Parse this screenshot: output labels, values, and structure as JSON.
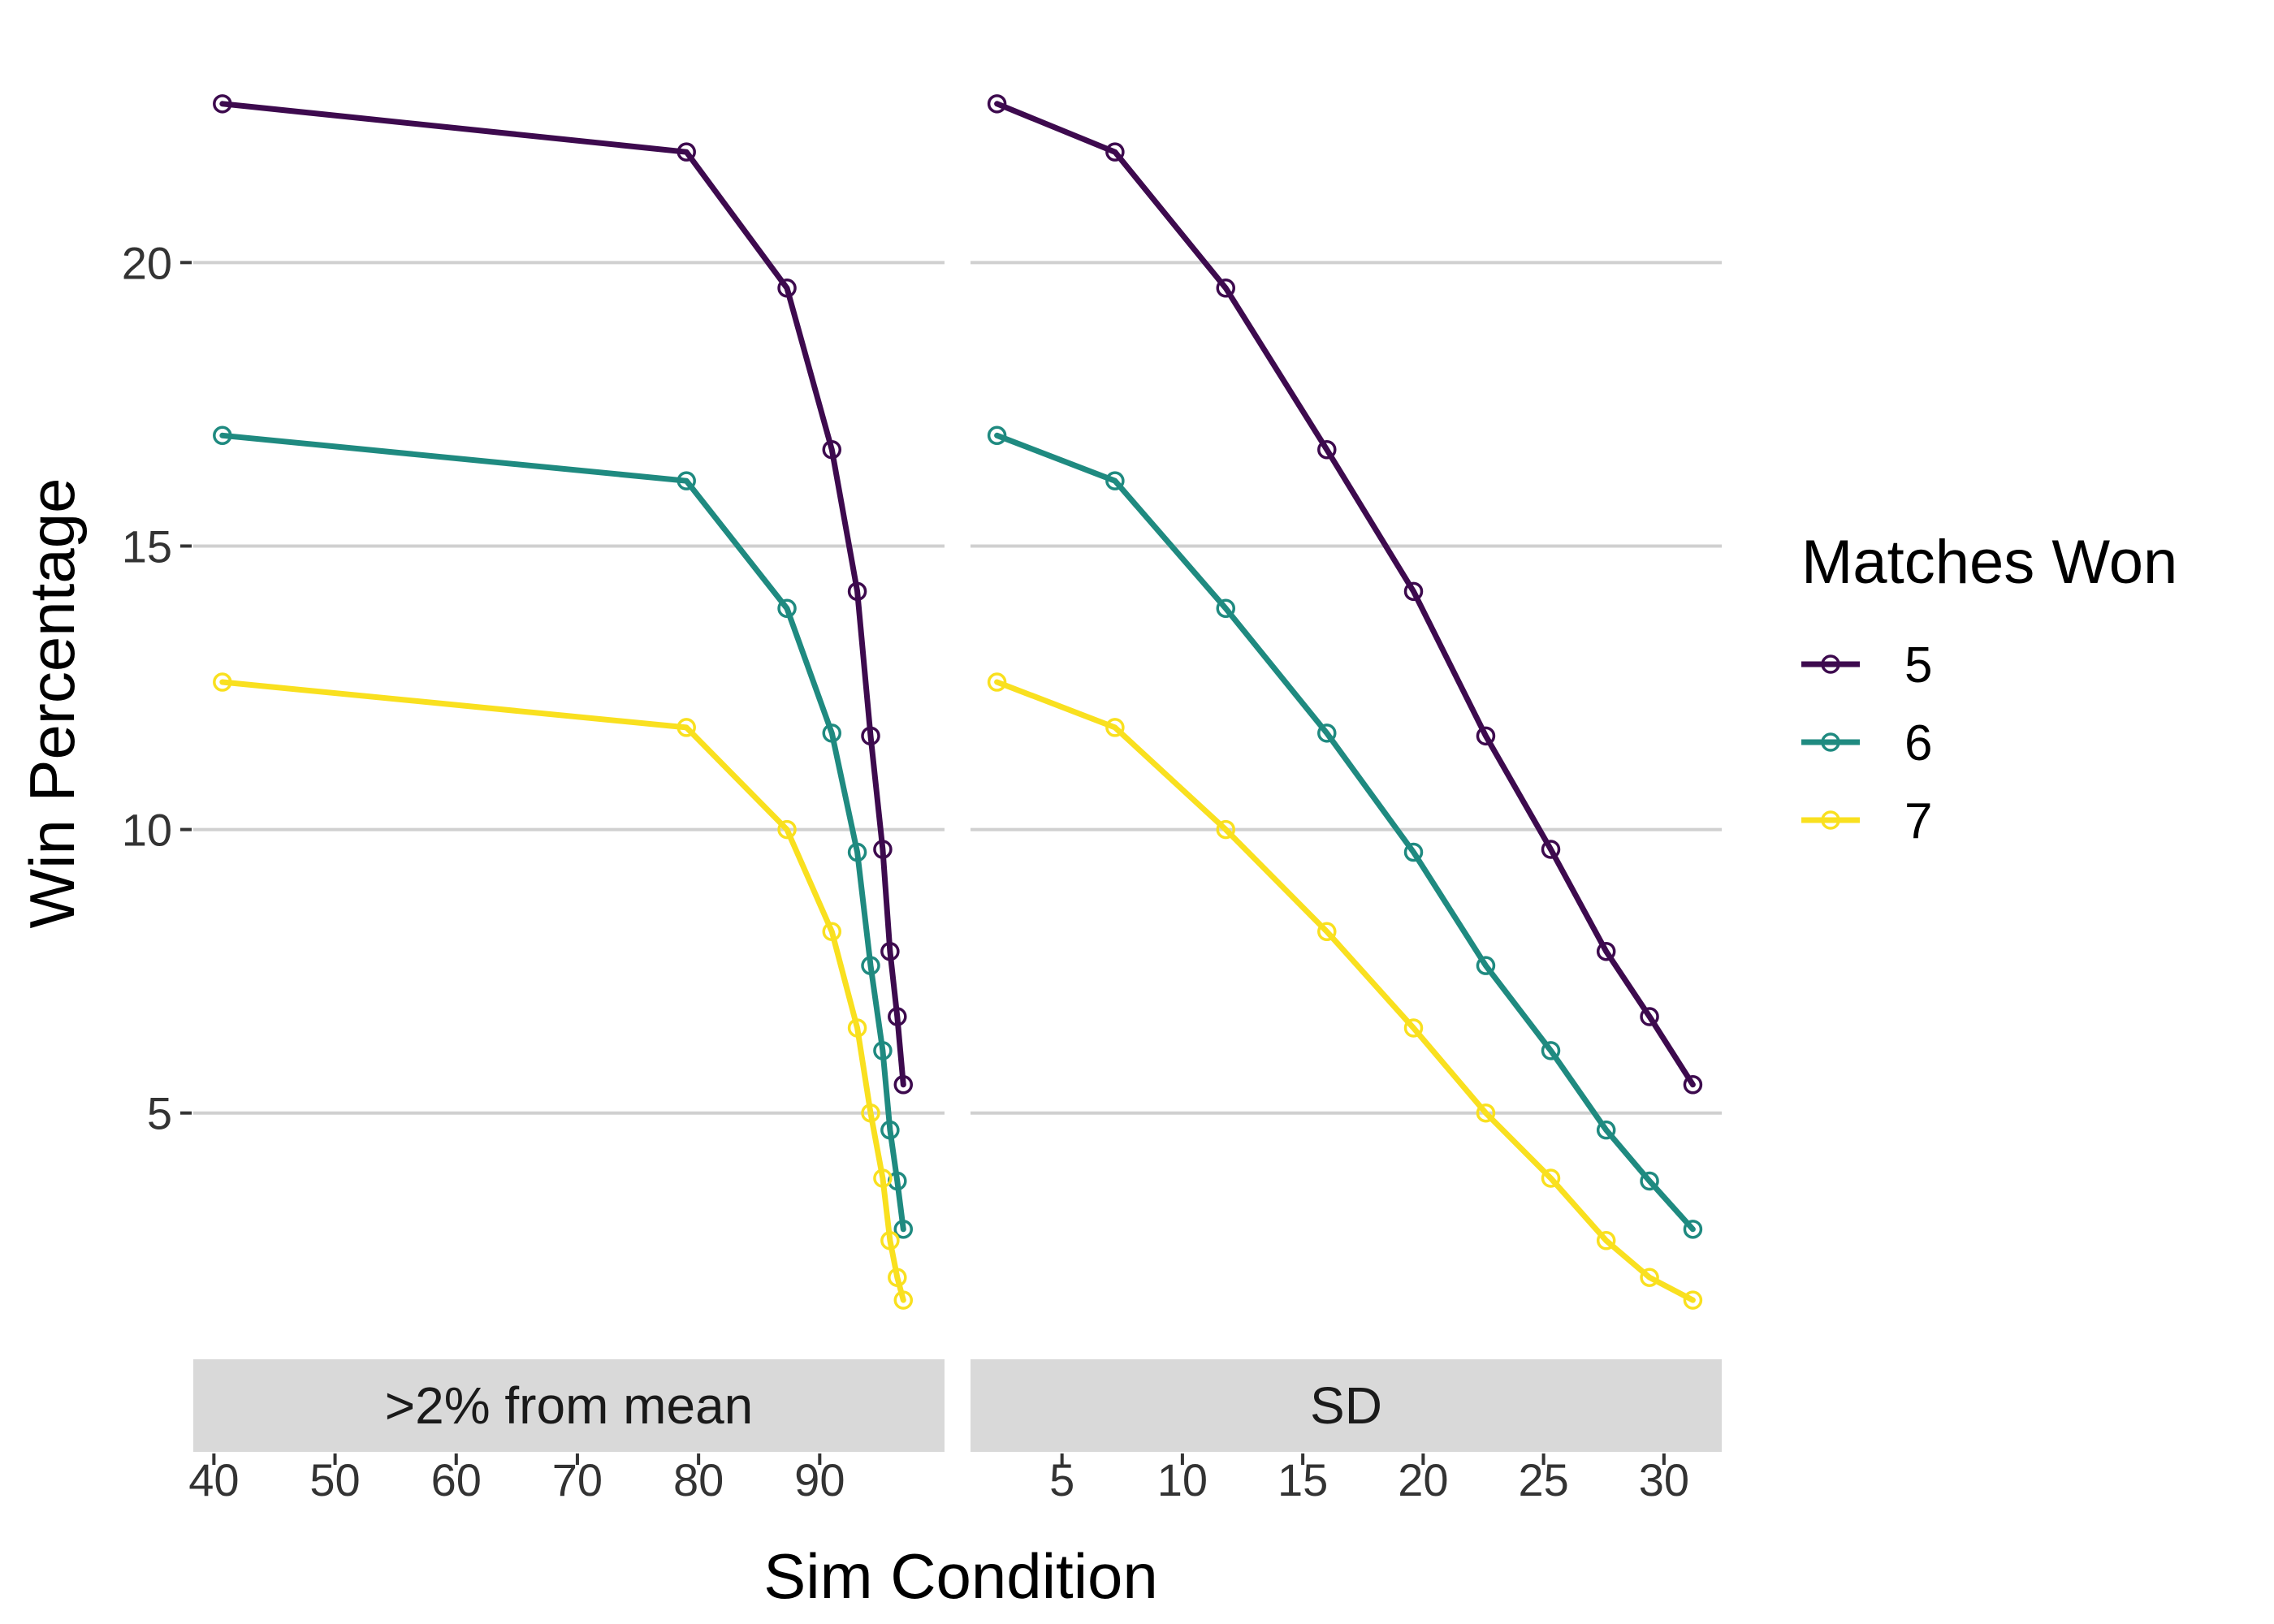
{
  "chart_data": {
    "type": "line",
    "xlabel": "Sim Condition",
    "ylabel": "Win Percentage",
    "y_ticks": [
      5,
      10,
      15,
      20
    ],
    "ylim": [
      1.0,
      23.8
    ],
    "grid": "horizontal-major",
    "legend": {
      "title": "Matches Won",
      "placement": "right",
      "entries": [
        "5",
        "6",
        "7"
      ]
    },
    "colors": {
      "5": "#3d0a4e",
      "6": "#1f8a80",
      "7": "#f9e01f"
    },
    "panels": [
      {
        "strip": ">2% from mean",
        "x_ticks": [
          40,
          50,
          60,
          70,
          80,
          90
        ],
        "xlim": [
          38.3,
          100.3
        ],
        "x": [
          40.7,
          79.0,
          87.3,
          91.0,
          93.1,
          94.2,
          95.2,
          95.8,
          96.4,
          96.9
        ],
        "series": [
          {
            "name": "5",
            "values": [
              22.8,
              21.95,
              19.55,
              16.7,
              14.2,
              11.65,
              9.65,
              7.85,
              6.7,
              5.5
            ]
          },
          {
            "name": "6",
            "values": [
              16.95,
              16.15,
              13.9,
              11.7,
              9.6,
              7.6,
              6.1,
              4.7,
              3.8,
              2.95
            ]
          },
          {
            "name": "7",
            "values": [
              12.6,
              11.8,
              10.0,
              8.2,
              6.5,
              5.0,
              3.85,
              2.75,
              2.1,
              1.7
            ]
          }
        ]
      },
      {
        "strip": "SD",
        "x_ticks": [
          5,
          10,
          15,
          20,
          25,
          30
        ],
        "xlim": [
          1.2,
          32.4
        ],
        "x": [
          2.3,
          7.2,
          11.8,
          16.0,
          19.6,
          22.6,
          25.3,
          27.6,
          29.4,
          31.2
        ],
        "series": [
          {
            "name": "5",
            "values": [
              22.8,
              21.95,
              19.55,
              16.7,
              14.2,
              11.65,
              9.65,
              7.85,
              6.7,
              5.5
            ]
          },
          {
            "name": "6",
            "values": [
              16.95,
              16.15,
              13.9,
              11.7,
              9.6,
              7.6,
              6.1,
              4.7,
              3.8,
              2.95
            ]
          },
          {
            "name": "7",
            "values": [
              12.6,
              11.8,
              10.0,
              8.2,
              6.5,
              5.0,
              3.85,
              2.75,
              2.1,
              1.7
            ]
          }
        ]
      }
    ]
  }
}
